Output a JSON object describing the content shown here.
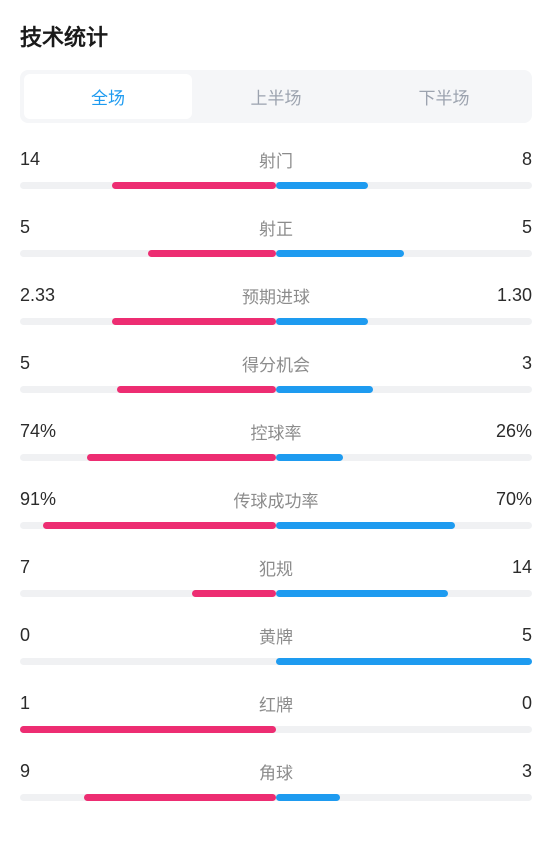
{
  "title": "技术统计",
  "tabs": {
    "full": "全场",
    "first_half": "上半场",
    "second_half": "下半场",
    "active_index": 0
  },
  "colors": {
    "left_bar": "#ed2d72",
    "right_bar": "#1e9bf0",
    "track": "#f0f1f3",
    "tab_active_text": "#1e9bf0",
    "tab_inactive_text": "#9ca3af",
    "tab_bg": "#f5f6f8",
    "label_color": "#8c8c8c",
    "value_color": "#2b2b2b"
  },
  "stats": [
    {
      "label": "射门",
      "left_value": "14",
      "right_value": "8",
      "left_pct": 64,
      "right_pct": 36
    },
    {
      "label": "射正",
      "left_value": "5",
      "right_value": "5",
      "left_pct": 50,
      "right_pct": 50
    },
    {
      "label": "预期进球",
      "left_value": "2.33",
      "right_value": "1.30",
      "left_pct": 64,
      "right_pct": 36
    },
    {
      "label": "得分机会",
      "left_value": "5",
      "right_value": "3",
      "left_pct": 62,
      "right_pct": 38
    },
    {
      "label": "控球率",
      "left_value": "74%",
      "right_value": "26%",
      "left_pct": 74,
      "right_pct": 26
    },
    {
      "label": "传球成功率",
      "left_value": "91%",
      "right_value": "70%",
      "left_pct": 91,
      "right_pct": 70
    },
    {
      "label": "犯规",
      "left_value": "7",
      "right_value": "14",
      "left_pct": 33,
      "right_pct": 67
    },
    {
      "label": "黄牌",
      "left_value": "0",
      "right_value": "5",
      "left_pct": 0,
      "right_pct": 100
    },
    {
      "label": "红牌",
      "left_value": "1",
      "right_value": "0",
      "left_pct": 100,
      "right_pct": 0
    },
    {
      "label": "角球",
      "left_value": "9",
      "right_value": "3",
      "left_pct": 75,
      "right_pct": 25
    }
  ]
}
